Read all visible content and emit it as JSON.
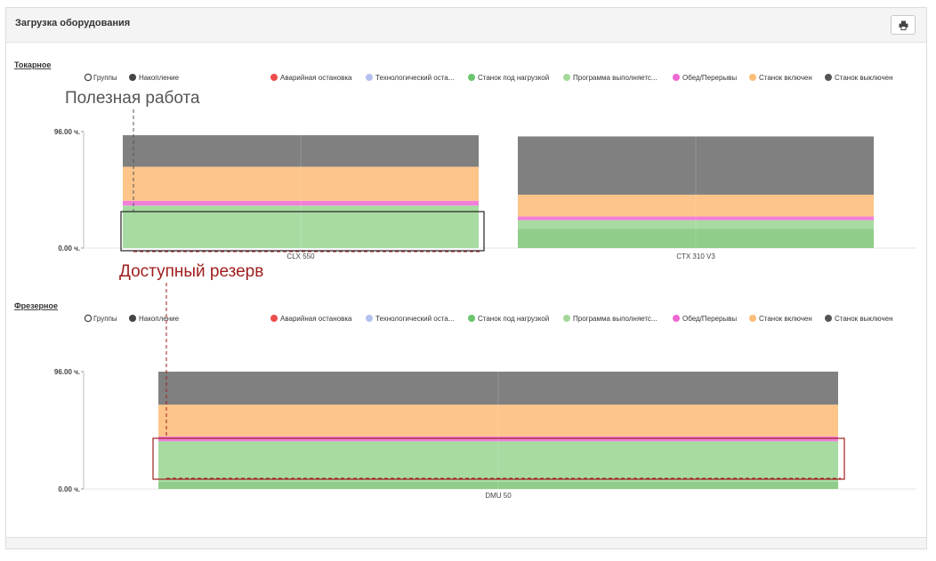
{
  "panel": {
    "title": "Загрузка оборудования",
    "print_icon": "print-icon"
  },
  "legend": [
    {
      "label": "Аварийная остановка",
      "color": "#ee4c4c"
    },
    {
      "label": "Технологический оста...",
      "color": "#b4c0ee"
    },
    {
      "label": "Станок под нагрузкой",
      "color": "#6cc46c"
    },
    {
      "label": "Программа выполняетс...",
      "color": "#a4d89a"
    },
    {
      "label": "Обед/Перерывы",
      "color": "#ee68d2"
    },
    {
      "label": "Станок включен",
      "color": "#fbbd78"
    },
    {
      "label": "Станок выключен",
      "color": "#555555"
    }
  ],
  "mode_toggle": {
    "groups": "Группы",
    "accumulation": "Накопление"
  },
  "annotations": {
    "useful_work": "Полезная работа",
    "available_reserve": "Доступный резерв"
  },
  "chart_data": [
    {
      "type": "bar",
      "stacked": true,
      "title": "Токарное",
      "categories": [
        "CLX 550",
        "CTX 310 V3"
      ],
      "y_tick_labels": [
        "96.00 ч.",
        "0.00 ч."
      ],
      "ylim": [
        0,
        96
      ],
      "series": [
        {
          "name": "Станок под нагрузкой",
          "color": "#90cd8a",
          "values": [
            0,
            16
          ]
        },
        {
          "name": "Программа выполняетс...",
          "color": "#a8dba2",
          "values": [
            35,
            7
          ]
        },
        {
          "name": "Обед/Перерывы",
          "color": "#f07fd9",
          "values": [
            4,
            3
          ]
        },
        {
          "name": "Станок включен",
          "color": "#fdc58a",
          "values": [
            28,
            18
          ]
        },
        {
          "name": "Станок выключен",
          "color": "#808080",
          "values": [
            26,
            48
          ]
        }
      ]
    },
    {
      "type": "bar",
      "stacked": true,
      "title": "Фрезерное",
      "categories": [
        "DMU 50"
      ],
      "y_tick_labels": [
        "96.00 ч.",
        "0.00 ч."
      ],
      "ylim": [
        0,
        96
      ],
      "series": [
        {
          "name": "Станок под нагрузкой",
          "color": "#90cd8a",
          "values": [
            6
          ]
        },
        {
          "name": "Программа выполняетс...",
          "color": "#a8dba2",
          "values": [
            33
          ]
        },
        {
          "name": "Обед/Перерывы",
          "color": "#f07fd9",
          "values": [
            4
          ]
        },
        {
          "name": "Станок включен",
          "color": "#fdc58a",
          "values": [
            26
          ]
        },
        {
          "name": "Станок выключен",
          "color": "#808080",
          "values": [
            27
          ]
        }
      ]
    }
  ]
}
